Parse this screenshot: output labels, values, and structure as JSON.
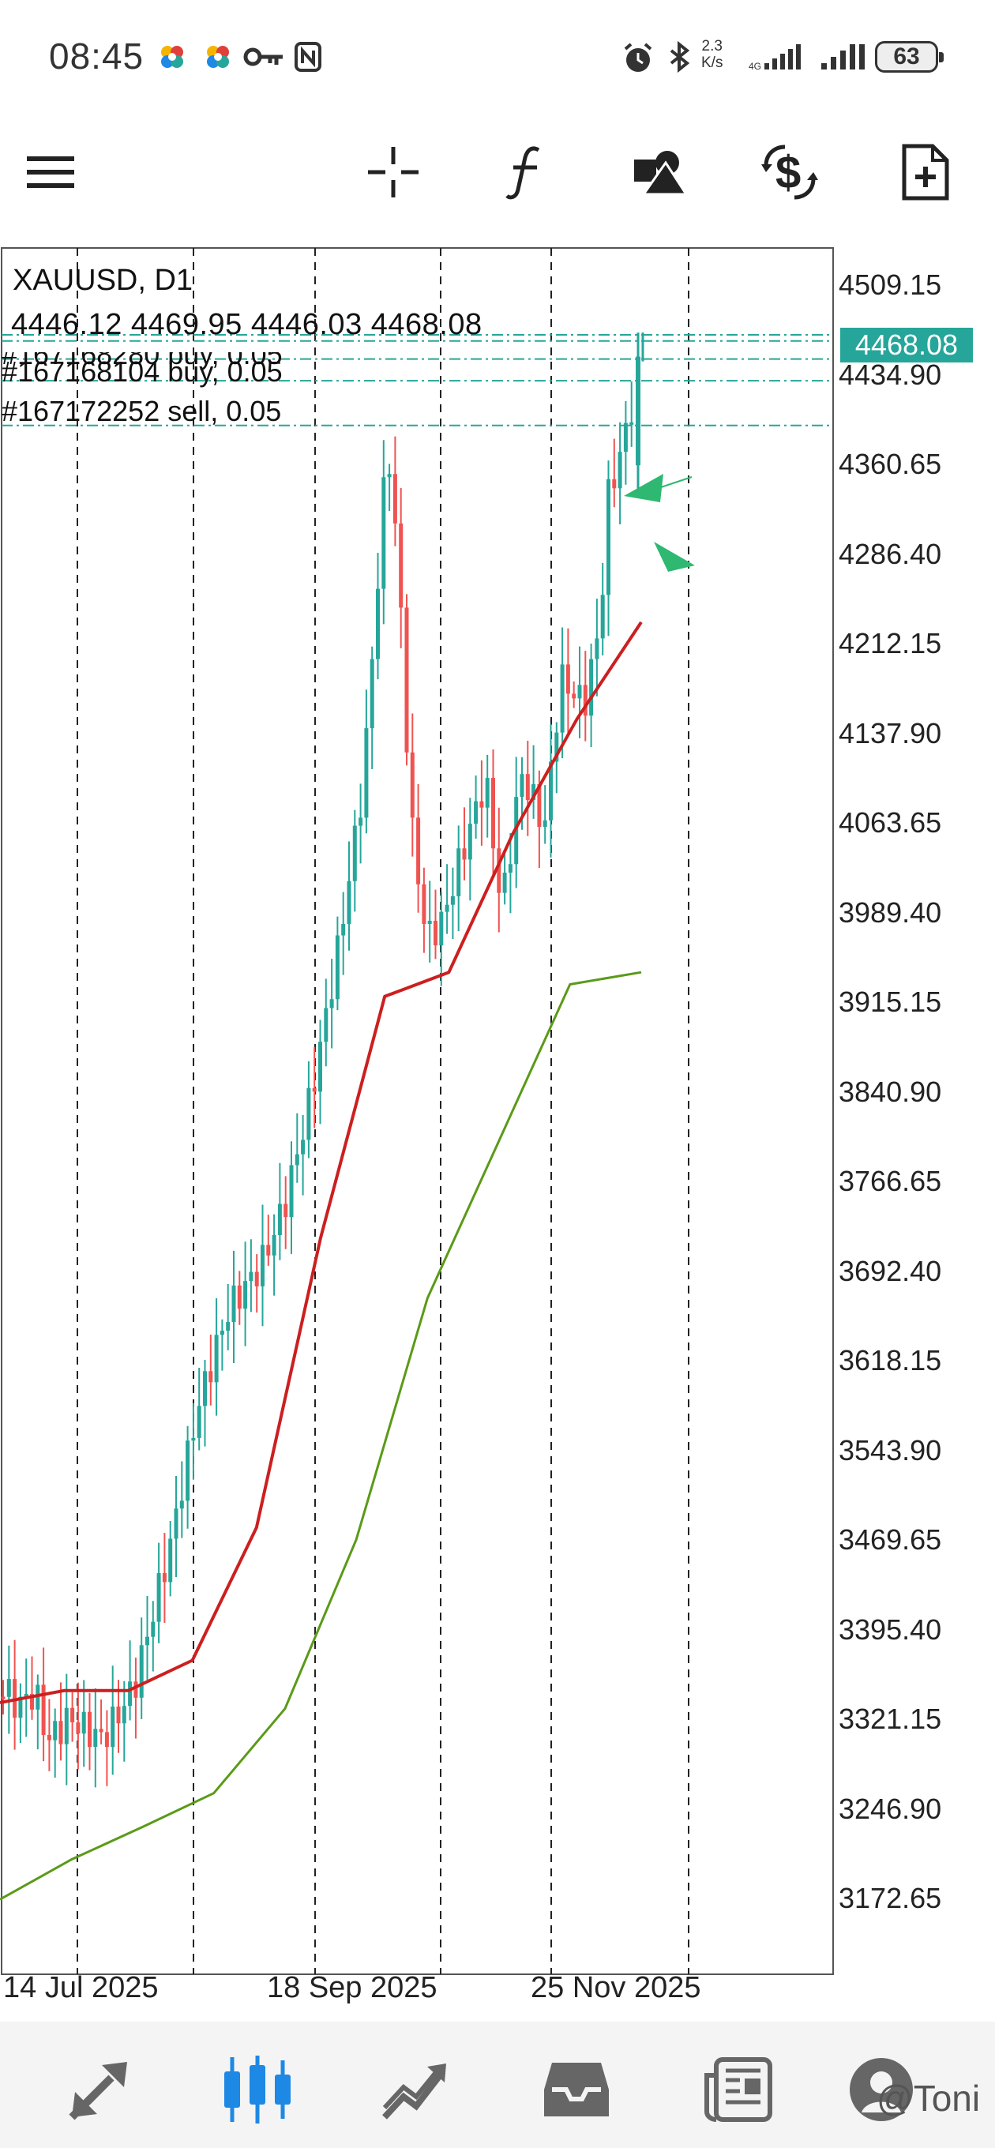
{
  "status_bar": {
    "time": "08:45",
    "net_speed_value": "2.3",
    "net_speed_unit": "K/s",
    "battery": "63"
  },
  "toolbar": {
    "icons": [
      "menu-icon",
      "crosshair-icon",
      "indicator-function-icon",
      "objects-icon",
      "trade-dollar-icon",
      "new-document-icon"
    ]
  },
  "chart": {
    "symbol": "XAUUSD, D1",
    "ohlc": "4446.12 4469.95 4446.03 4468.08",
    "current_price": "4468.08",
    "orders": [
      "#167168280 buy, 0.05",
      "#167168104 buy, 0.05",
      "#167172252 sell, 0.05"
    ],
    "price_ticks": [
      "4509.15",
      "4434.90",
      "4360.65",
      "4286.40",
      "4212.15",
      "4137.90",
      "4063.65",
      "3989.40",
      "3915.15",
      "3840.90",
      "3766.65",
      "3692.40",
      "3618.15",
      "3543.90",
      "3469.65",
      "3395.40",
      "3321.15",
      "3246.90",
      "3172.65"
    ],
    "date_ticks": [
      "14 Jul 2025",
      "18 Sep 2025",
      "25 Nov 2025"
    ],
    "colors": {
      "bull": "#26a69a",
      "bear": "#ef5350",
      "ma_fast": "#cc1f1f",
      "ma_slow": "#5a9a18",
      "order_line": "#26a69a",
      "arrow": "#2eb872"
    }
  },
  "chart_data": {
    "type": "candlestick",
    "title": "XAUUSD, D1",
    "x_labels": [
      "14 Jul 2025",
      "18 Sep 2025",
      "25 Nov 2025"
    ],
    "ylim": [
      3110,
      4540
    ],
    "last_close": 4468.08,
    "ma_fast": [
      3335,
      3345,
      3345,
      3370,
      3480,
      3720,
      3920,
      3940,
      4055,
      4150,
      4230
    ],
    "ma_slow": [
      3172,
      3205,
      3232,
      3260,
      3330,
      3470,
      3670,
      3800,
      3930,
      3940
    ],
    "grid": "vertical dashed"
  },
  "bottom_nav": {
    "items": [
      "quotes-icon",
      "chart-icon",
      "trade-icon",
      "history-icon",
      "news-icon",
      "community-icon"
    ],
    "watermark": "@Toni"
  }
}
